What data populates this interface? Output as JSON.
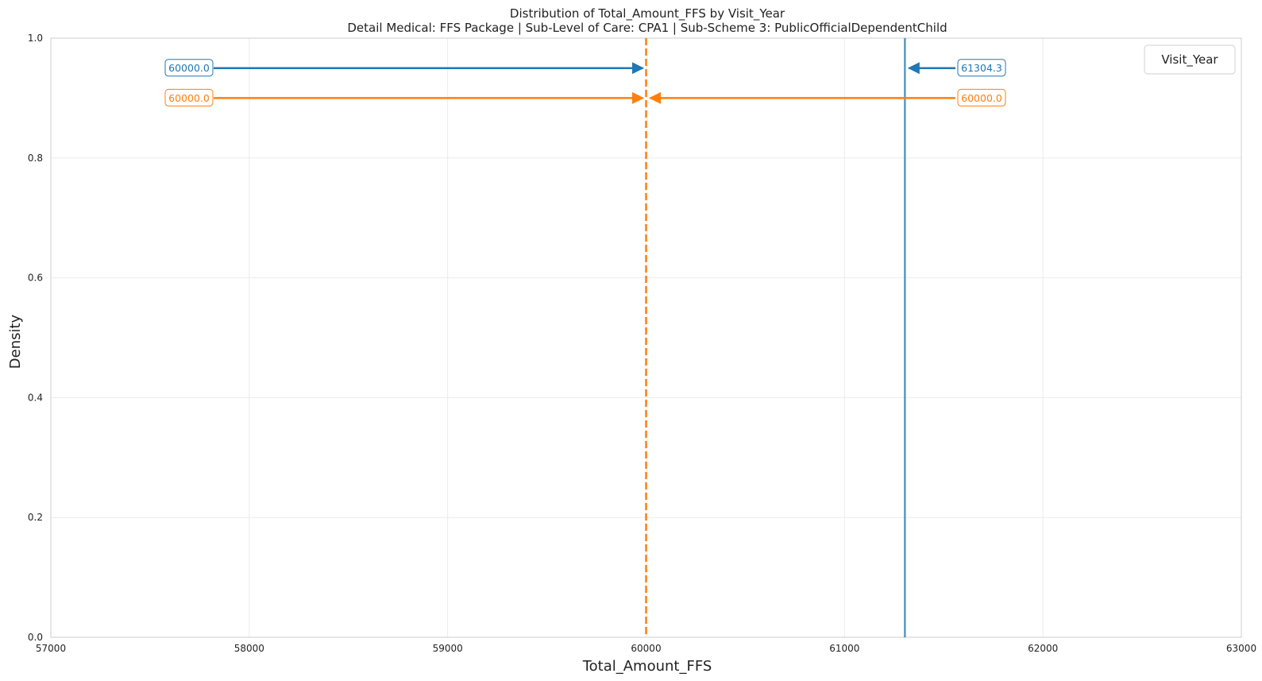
{
  "chart_data": {
    "type": "line",
    "title": "Distribution of Total_Amount_FFS by Visit_Year",
    "subtitle": "Detail Medical: FFS Package | Sub-Level of Care: CPA1 | Sub-Scheme 3: PublicOfficialDependentChild",
    "xlabel": "Total_Amount_FFS",
    "ylabel": "Density",
    "xlim": [
      57000,
      63000
    ],
    "ylim": [
      0.0,
      1.0
    ],
    "x_ticks": [
      "57000",
      "58000",
      "59000",
      "60000",
      "61000",
      "62000",
      "63000"
    ],
    "y_ticks": [
      "0.0",
      "0.2",
      "0.4",
      "0.6",
      "0.8",
      "1.0"
    ],
    "x_tick_values": [
      57000,
      58000,
      59000,
      60000,
      61000,
      62000,
      63000
    ],
    "y_tick_values": [
      0.0,
      0.2,
      0.4,
      0.6,
      0.8,
      1.0
    ],
    "grid": true,
    "legend": {
      "title": "Visit_Year",
      "placement": "top-right",
      "entries": []
    },
    "series": [
      {
        "color": "#1f77b4",
        "median": 60000.0,
        "mean": 61304.3,
        "median_label": "60000.0",
        "mean_label": "61304.3",
        "annotation_y": 0.95
      },
      {
        "color": "#ff7f0e",
        "median": 60000.0,
        "mean": 60000.0,
        "median_label": "60000.0",
        "mean_label": "60000.0",
        "annotation_y": 0.9
      }
    ]
  }
}
